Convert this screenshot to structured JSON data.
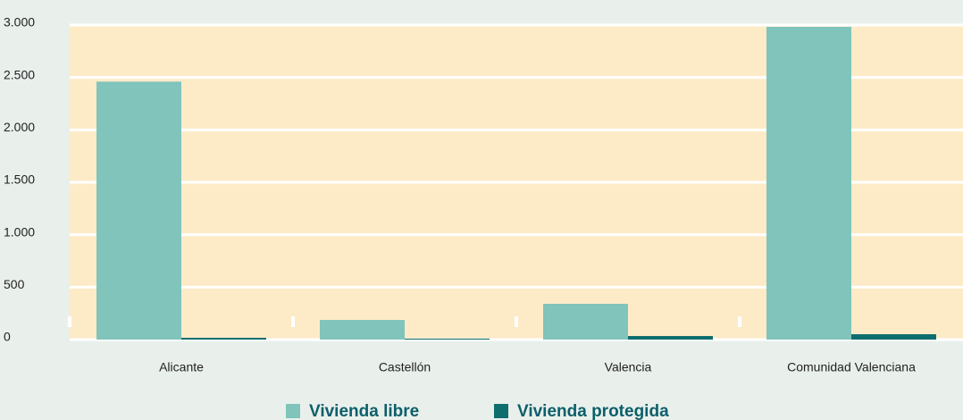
{
  "chart_data": {
    "type": "bar",
    "categories": [
      "Alicante",
      "Castellón",
      "Valencia",
      "Comunidad Valenciana"
    ],
    "series": [
      {
        "name": "Vivienda libre",
        "color": "#80c4bb",
        "values": [
          2460,
          187,
          341,
          2983
        ]
      },
      {
        "name": "Vivienda protegida",
        "color": "#0e6e6e",
        "values": [
          17,
          9,
          34,
          51
        ]
      }
    ],
    "ylim": [
      0,
      3000
    ],
    "yticks": [
      0,
      500,
      {
        "value": 1000,
        "label": "1.000"
      },
      {
        "value": 1500,
        "label": "1.500"
      },
      {
        "value": 2000,
        "label": "2.000"
      },
      {
        "value": 2500,
        "label": "2.500"
      },
      {
        "value": 3000,
        "label": "3.000"
      }
    ],
    "grid": true
  }
}
